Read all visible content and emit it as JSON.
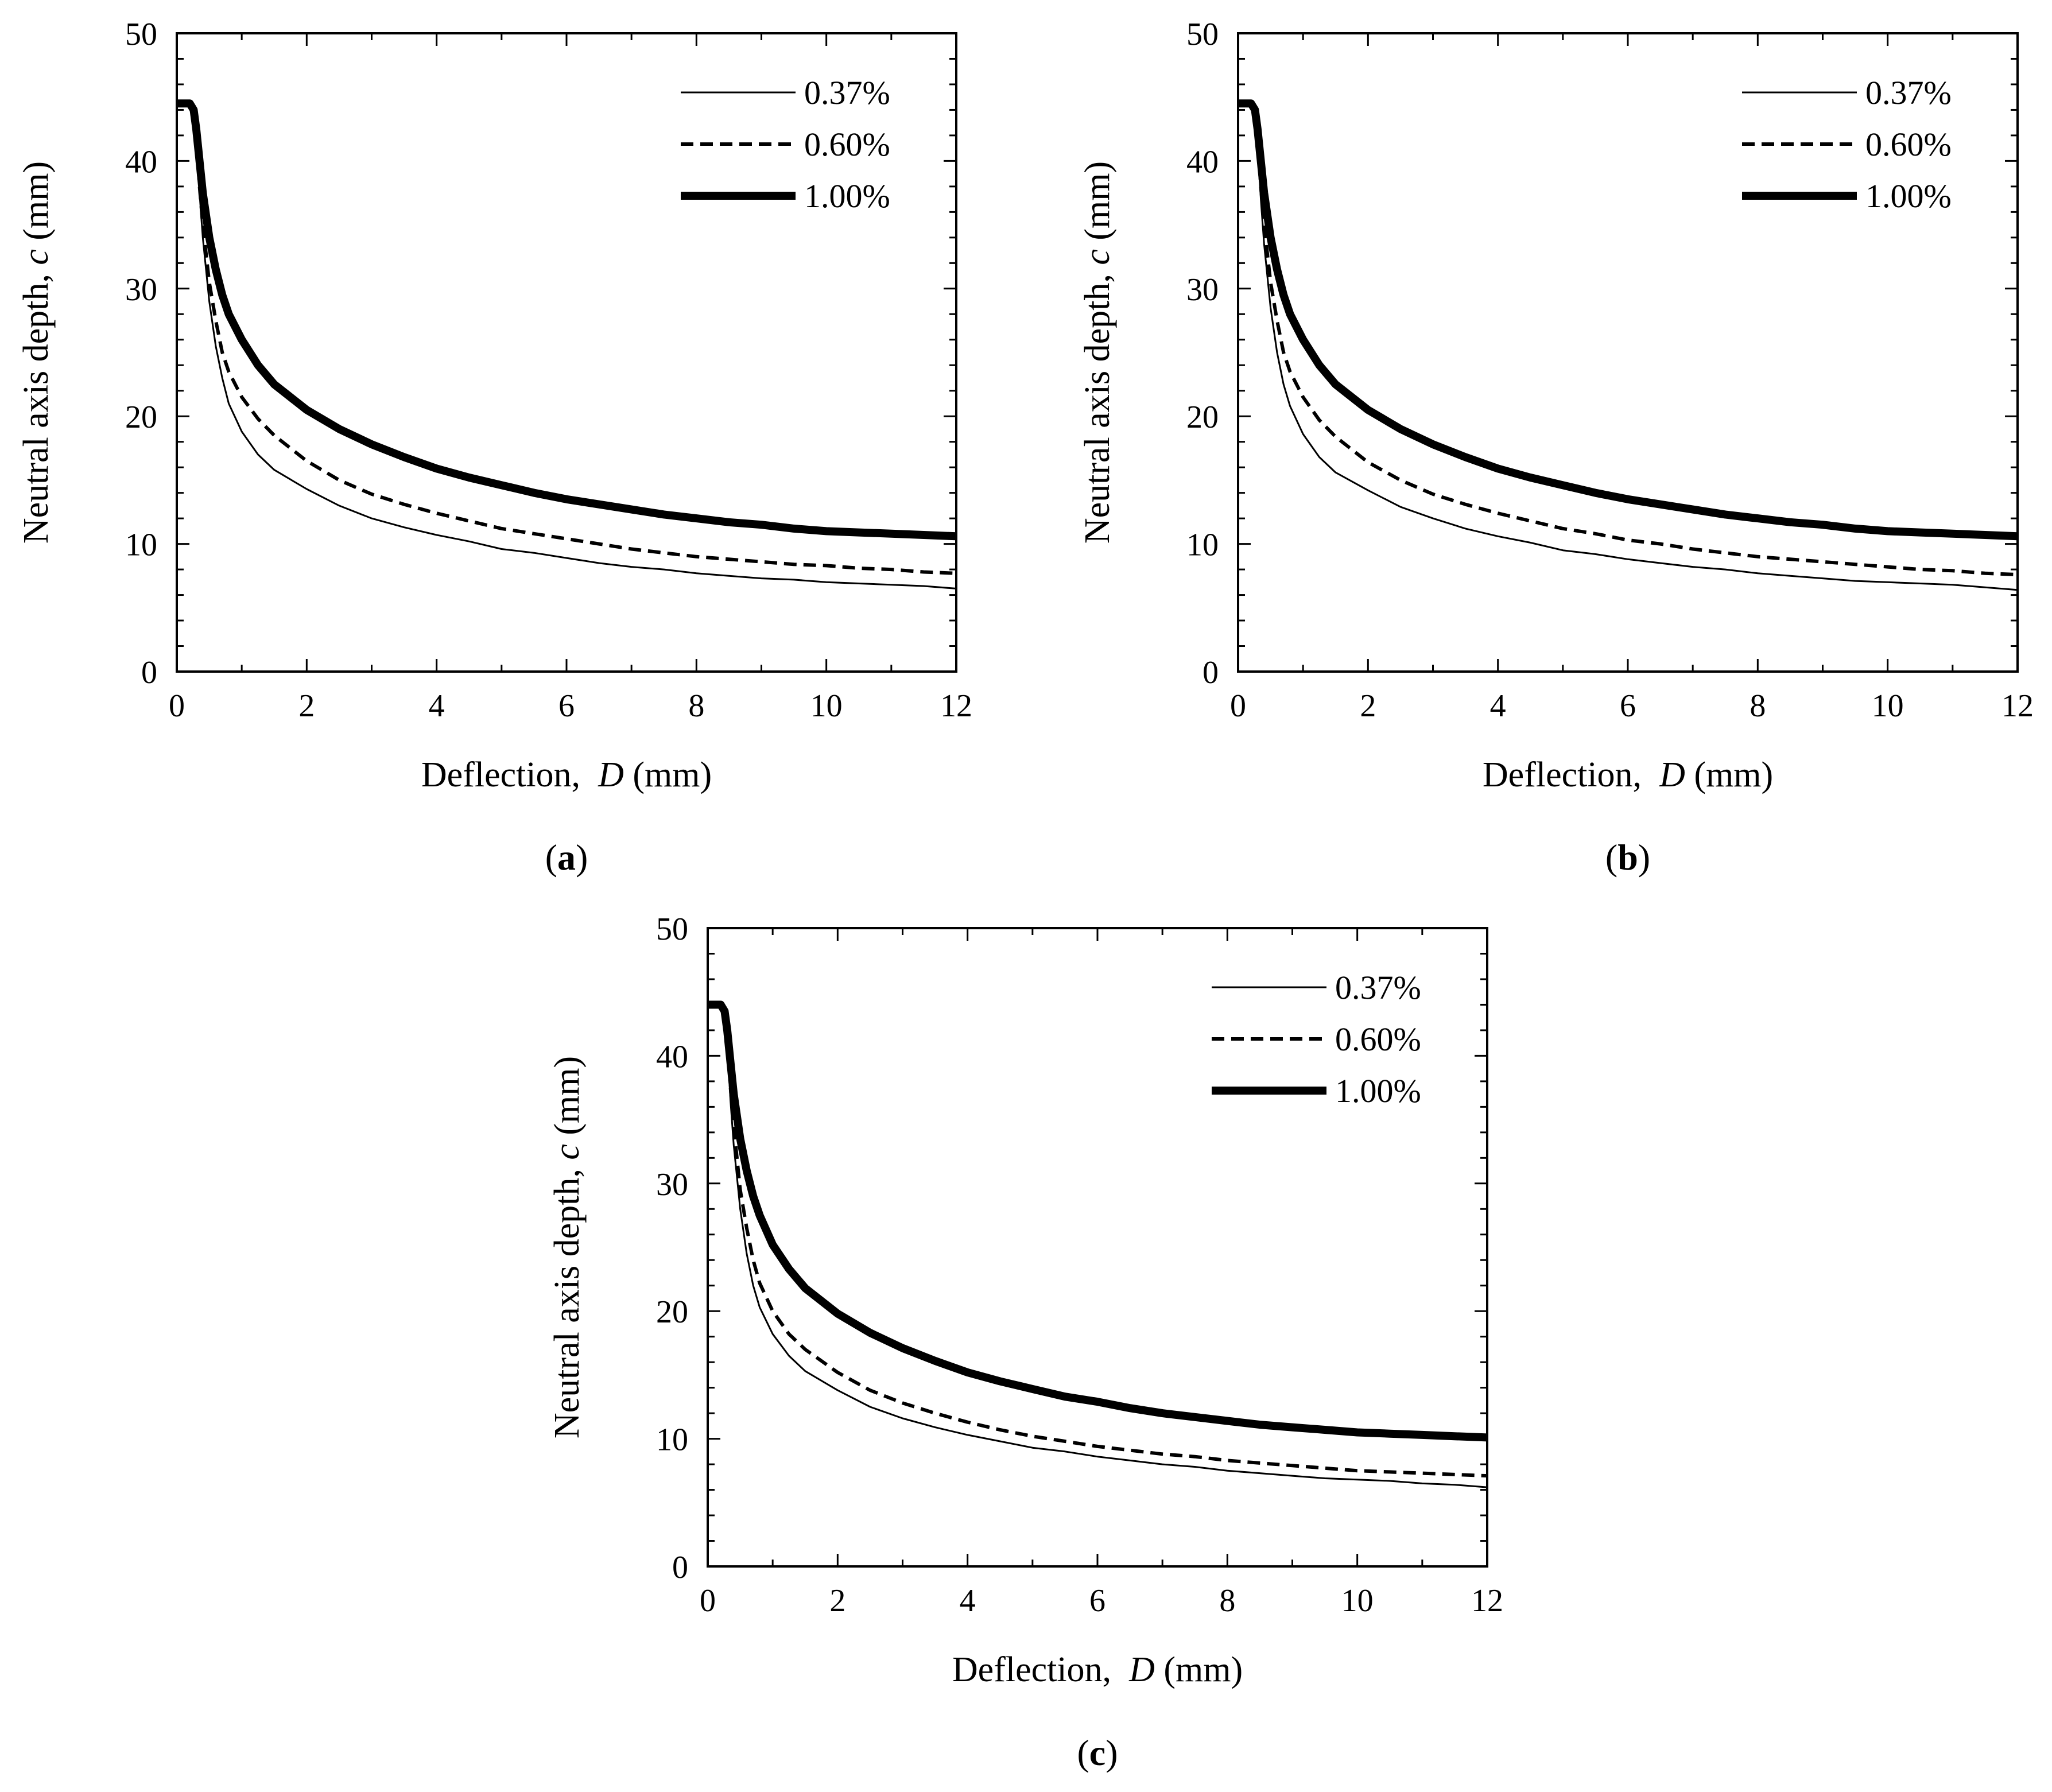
{
  "figure": {
    "panels": [
      {
        "id": "a",
        "caption_open": "(",
        "caption_letter": "a",
        "caption_close": ")",
        "legend": [
          "0.37%",
          "0.60%",
          "1.00%"
        ]
      },
      {
        "id": "b",
        "caption_open": "(",
        "caption_letter": "b",
        "caption_close": ")",
        "legend": [
          "0.37%",
          "0.60%",
          "1.00%"
        ]
      },
      {
        "id": "c",
        "caption_open": "(",
        "caption_letter": "c",
        "caption_close": ")",
        "legend": [
          "0.37%",
          "0.60%",
          "1.00%"
        ]
      }
    ]
  },
  "chart_data": [
    {
      "panel": "a",
      "type": "line",
      "title": "",
      "xlabel": "Deflection, D (mm)",
      "xlabel_prefix": "Deflection,",
      "xlabel_var": "D",
      "xlabel_unit": "(mm)",
      "ylabel": "Neutral axis depth, c (mm)",
      "ylabel_prefix": "Neutral axis depth,",
      "ylabel_var": "c",
      "ylabel_unit": "(mm)",
      "xlim": [
        0,
        12
      ],
      "ylim": [
        0,
        50
      ],
      "xticks": [
        0,
        2,
        4,
        6,
        8,
        10,
        12
      ],
      "yticks": [
        0,
        10,
        20,
        30,
        40,
        50
      ],
      "legend_position": "top-right",
      "series": [
        {
          "name": "0.37%",
          "style": "thin",
          "x": [
            0,
            0.1,
            0.2,
            0.26,
            0.3,
            0.35,
            0.4,
            0.5,
            0.6,
            0.7,
            0.8,
            1.0,
            1.25,
            1.5,
            2,
            2.5,
            3,
            3.5,
            4,
            4.5,
            5,
            5.5,
            6,
            6.5,
            7,
            7.5,
            8,
            8.5,
            9,
            9.5,
            10,
            10.5,
            11,
            11.5,
            12
          ],
          "y": [
            44.5,
            44.5,
            44.5,
            44,
            42,
            37.5,
            34,
            29,
            25.5,
            23,
            21,
            18.8,
            17,
            15.8,
            14.3,
            13,
            12,
            11.3,
            10.7,
            10.2,
            9.6,
            9.3,
            8.9,
            8.5,
            8.2,
            8.0,
            7.7,
            7.5,
            7.3,
            7.2,
            7.0,
            6.9,
            6.8,
            6.7,
            6.5
          ]
        },
        {
          "name": "0.60%",
          "style": "dashed",
          "x": [
            0,
            0.1,
            0.2,
            0.26,
            0.3,
            0.35,
            0.4,
            0.5,
            0.6,
            0.7,
            0.8,
            1.0,
            1.25,
            1.5,
            2,
            2.5,
            3,
            3.5,
            4,
            4.5,
            5,
            5.5,
            6,
            6.5,
            7,
            7.5,
            8,
            8.5,
            9,
            9.5,
            10,
            10.5,
            11,
            11.5,
            12
          ],
          "y": [
            44.5,
            44.5,
            44.5,
            44,
            42,
            38,
            35,
            30.5,
            27.5,
            25,
            23.5,
            21.5,
            19.8,
            18.5,
            16.5,
            15,
            13.9,
            13.1,
            12.4,
            11.8,
            11.2,
            10.8,
            10.4,
            10.0,
            9.6,
            9.3,
            9.0,
            8.8,
            8.6,
            8.4,
            8.3,
            8.1,
            8.0,
            7.8,
            7.7
          ]
        },
        {
          "name": "1.00%",
          "style": "thick",
          "x": [
            0,
            0.1,
            0.2,
            0.26,
            0.3,
            0.35,
            0.4,
            0.5,
            0.6,
            0.7,
            0.8,
            1.0,
            1.25,
            1.5,
            2,
            2.5,
            3,
            3.5,
            4,
            4.5,
            5,
            5.5,
            6,
            6.5,
            7,
            7.5,
            8,
            8.5,
            9,
            9.5,
            10,
            10.5,
            11,
            11.5,
            12
          ],
          "y": [
            44.5,
            44.5,
            44.5,
            44,
            42.5,
            40,
            37.5,
            34,
            31.5,
            29.5,
            28,
            26,
            24,
            22.5,
            20.5,
            19,
            17.8,
            16.8,
            15.9,
            15.2,
            14.6,
            14.0,
            13.5,
            13.1,
            12.7,
            12.3,
            12.0,
            11.7,
            11.5,
            11.2,
            11.0,
            10.9,
            10.8,
            10.7,
            10.6
          ]
        }
      ]
    },
    {
      "panel": "b",
      "type": "line",
      "title": "",
      "xlabel": "Deflection, D (mm)",
      "xlabel_prefix": "Deflection,",
      "xlabel_var": "D",
      "xlabel_unit": "(mm)",
      "ylabel": "Neutral axis depth, c (mm)",
      "ylabel_prefix": "Neutral axis depth,",
      "ylabel_var": "c",
      "ylabel_unit": "(mm)",
      "xlim": [
        0,
        12
      ],
      "ylim": [
        0,
        50
      ],
      "xticks": [
        0,
        2,
        4,
        6,
        8,
        10,
        12
      ],
      "yticks": [
        0,
        10,
        20,
        30,
        40,
        50
      ],
      "legend_position": "top-right",
      "series": [
        {
          "name": "0.37%",
          "style": "thin",
          "x": [
            0,
            0.1,
            0.2,
            0.26,
            0.3,
            0.35,
            0.4,
            0.5,
            0.6,
            0.7,
            0.8,
            1.0,
            1.25,
            1.5,
            2,
            2.5,
            3,
            3.5,
            4,
            4.5,
            5,
            5.5,
            6,
            6.5,
            7,
            7.5,
            8,
            8.5,
            9,
            9.5,
            10,
            10.5,
            11,
            11.5,
            12
          ],
          "y": [
            44.5,
            44.5,
            44.5,
            44,
            41.5,
            37,
            33.5,
            28.5,
            25,
            22.5,
            20.8,
            18.6,
            16.8,
            15.6,
            14.2,
            12.9,
            12.0,
            11.2,
            10.6,
            10.1,
            9.5,
            9.2,
            8.8,
            8.5,
            8.2,
            8.0,
            7.7,
            7.5,
            7.3,
            7.1,
            7.0,
            6.9,
            6.8,
            6.6,
            6.4
          ]
        },
        {
          "name": "0.60%",
          "style": "dashed",
          "x": [
            0,
            0.1,
            0.2,
            0.26,
            0.3,
            0.35,
            0.4,
            0.5,
            0.6,
            0.7,
            0.8,
            1.0,
            1.25,
            1.5,
            2,
            2.5,
            3,
            3.5,
            4,
            4.5,
            5,
            5.5,
            6,
            6.5,
            7,
            7.5,
            8,
            8.5,
            9,
            9.5,
            10,
            10.5,
            11,
            11.5,
            12
          ],
          "y": [
            44.5,
            44.5,
            44.5,
            44,
            42,
            38,
            35,
            30.5,
            27.5,
            25,
            23.5,
            21.5,
            19.7,
            18.4,
            16.4,
            15,
            13.9,
            13.1,
            12.4,
            11.8,
            11.2,
            10.8,
            10.3,
            10.0,
            9.6,
            9.3,
            9.0,
            8.8,
            8.6,
            8.4,
            8.2,
            8.0,
            7.9,
            7.7,
            7.6
          ]
        },
        {
          "name": "1.00%",
          "style": "thick",
          "x": [
            0,
            0.1,
            0.2,
            0.26,
            0.3,
            0.35,
            0.4,
            0.5,
            0.6,
            0.7,
            0.8,
            1.0,
            1.25,
            1.5,
            2,
            2.5,
            3,
            3.5,
            4,
            4.5,
            5,
            5.5,
            6,
            6.5,
            7,
            7.5,
            8,
            8.5,
            9,
            9.5,
            10,
            10.5,
            11,
            11.5,
            12
          ],
          "y": [
            44.5,
            44.5,
            44.5,
            44,
            42.5,
            40,
            37.5,
            34,
            31.5,
            29.5,
            28,
            26,
            24,
            22.5,
            20.5,
            19,
            17.8,
            16.8,
            15.9,
            15.2,
            14.6,
            14.0,
            13.5,
            13.1,
            12.7,
            12.3,
            12.0,
            11.7,
            11.5,
            11.2,
            11.0,
            10.9,
            10.8,
            10.7,
            10.6
          ]
        }
      ]
    },
    {
      "panel": "c",
      "type": "line",
      "title": "",
      "xlabel": "Deflection, D (mm)",
      "xlabel_prefix": "Deflection,",
      "xlabel_var": "D",
      "xlabel_unit": "(mm)",
      "ylabel": "Neutral axis depth, c (mm)",
      "ylabel_prefix": "Neutral axis depth,",
      "ylabel_var": "c",
      "ylabel_unit": "(mm)",
      "xlim": [
        0,
        12
      ],
      "ylim": [
        0,
        50
      ],
      "xticks": [
        0,
        2,
        4,
        6,
        8,
        10,
        12
      ],
      "yticks": [
        0,
        10,
        20,
        30,
        40,
        50
      ],
      "legend_position": "top-right",
      "series": [
        {
          "name": "0.37%",
          "style": "thin",
          "x": [
            0,
            0.1,
            0.2,
            0.26,
            0.3,
            0.35,
            0.4,
            0.5,
            0.6,
            0.7,
            0.8,
            1.0,
            1.25,
            1.5,
            2,
            2.5,
            3,
            3.5,
            4,
            4.5,
            5,
            5.5,
            6,
            6.5,
            7,
            7.5,
            8,
            8.5,
            9,
            9.5,
            10,
            10.5,
            11,
            11.5,
            12
          ],
          "y": [
            44,
            44,
            44,
            43.5,
            41,
            36.5,
            33,
            28,
            24.5,
            22,
            20.3,
            18.2,
            16.5,
            15.3,
            13.8,
            12.5,
            11.6,
            10.9,
            10.3,
            9.8,
            9.3,
            9.0,
            8.6,
            8.3,
            8.0,
            7.8,
            7.5,
            7.3,
            7.1,
            6.9,
            6.8,
            6.7,
            6.5,
            6.4,
            6.2
          ]
        },
        {
          "name": "0.60%",
          "style": "dashed",
          "x": [
            0,
            0.1,
            0.2,
            0.26,
            0.3,
            0.35,
            0.4,
            0.5,
            0.6,
            0.7,
            0.8,
            1.0,
            1.25,
            1.5,
            2,
            2.5,
            3,
            3.5,
            4,
            4.5,
            5,
            5.5,
            6,
            6.5,
            7,
            7.5,
            8,
            8.5,
            9,
            9.5,
            10,
            10.5,
            11,
            11.5,
            12
          ],
          "y": [
            44,
            44,
            44,
            43.5,
            41.5,
            37.5,
            34.5,
            29.5,
            26.5,
            24,
            22.2,
            20.0,
            18.2,
            17.0,
            15.2,
            13.8,
            12.8,
            12.0,
            11.3,
            10.7,
            10.2,
            9.8,
            9.4,
            9.1,
            8.8,
            8.6,
            8.3,
            8.1,
            7.9,
            7.7,
            7.5,
            7.4,
            7.3,
            7.2,
            7.1
          ]
        },
        {
          "name": "1.00%",
          "style": "thick",
          "x": [
            0,
            0.1,
            0.2,
            0.26,
            0.3,
            0.35,
            0.4,
            0.5,
            0.6,
            0.7,
            0.8,
            1.0,
            1.25,
            1.5,
            2,
            2.5,
            3,
            3.5,
            4,
            4.5,
            5,
            5.5,
            6,
            6.5,
            7,
            7.5,
            8,
            8.5,
            9,
            9.5,
            10,
            10.5,
            11,
            11.5,
            12
          ],
          "y": [
            44,
            44,
            44,
            43.5,
            42,
            39.5,
            37,
            33.5,
            31,
            29,
            27.5,
            25.2,
            23.3,
            21.8,
            19.8,
            18.3,
            17.1,
            16.1,
            15.2,
            14.5,
            13.9,
            13.3,
            12.9,
            12.4,
            12.0,
            11.7,
            11.4,
            11.1,
            10.9,
            10.7,
            10.5,
            10.4,
            10.3,
            10.2,
            10.1
          ]
        }
      ]
    }
  ]
}
